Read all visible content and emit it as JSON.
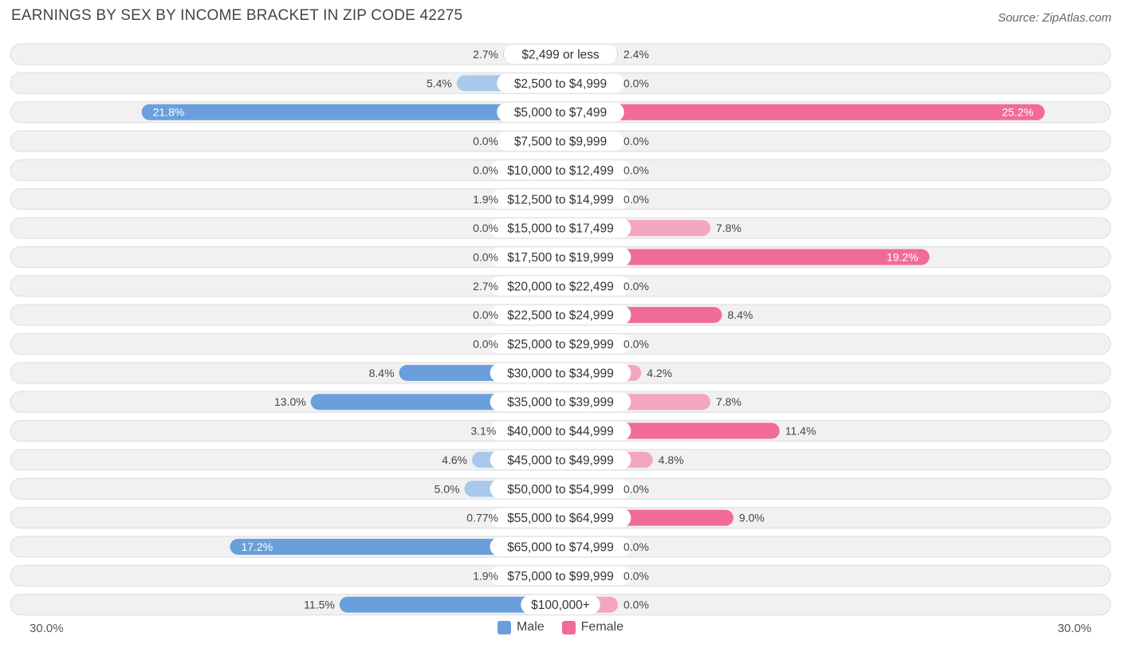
{
  "title": "EARNINGS BY SEX BY INCOME BRACKET IN ZIP CODE 42275",
  "source": "Source: ZipAtlas.com",
  "colors": {
    "male": "#6a9fdc",
    "male_light": "#a8c8ec",
    "female": "#f06b95",
    "female_light": "#f4a6c0",
    "row_bg": "#f1f1f1",
    "row_border": "#dddddd"
  },
  "chart_data": {
    "type": "bar",
    "orientation": "horizontal-diverging",
    "title": "EARNINGS BY SEX BY INCOME BRACKET IN ZIP CODE 42275",
    "categories": [
      "$2,499 or less",
      "$2,500 to $4,999",
      "$5,000 to $7,499",
      "$7,500 to $9,999",
      "$10,000 to $12,499",
      "$12,500 to $14,999",
      "$15,000 to $17,499",
      "$17,500 to $19,999",
      "$20,000 to $22,499",
      "$22,500 to $24,999",
      "$25,000 to $29,999",
      "$30,000 to $34,999",
      "$35,000 to $39,999",
      "$40,000 to $44,999",
      "$45,000 to $49,999",
      "$50,000 to $54,999",
      "$55,000 to $64,999",
      "$65,000 to $74,999",
      "$75,000 to $99,999",
      "$100,000+"
    ],
    "series": [
      {
        "name": "Male",
        "values": [
          2.7,
          5.4,
          21.8,
          0.0,
          0.0,
          1.9,
          0.0,
          0.0,
          2.7,
          0.0,
          0.0,
          8.4,
          13.0,
          3.1,
          4.6,
          5.0,
          0.77,
          17.2,
          1.9,
          11.5
        ],
        "labels": [
          "2.7%",
          "5.4%",
          "21.8%",
          "0.0%",
          "0.0%",
          "1.9%",
          "0.0%",
          "0.0%",
          "2.7%",
          "0.0%",
          "0.0%",
          "8.4%",
          "13.0%",
          "3.1%",
          "4.6%",
          "5.0%",
          "0.77%",
          "17.2%",
          "1.9%",
          "11.5%"
        ]
      },
      {
        "name": "Female",
        "values": [
          2.4,
          0.0,
          25.2,
          0.0,
          0.0,
          0.0,
          7.8,
          19.2,
          0.0,
          8.4,
          0.0,
          4.2,
          7.8,
          11.4,
          4.8,
          0.0,
          9.0,
          0.0,
          0.0,
          0.0
        ],
        "labels": [
          "2.4%",
          "0.0%",
          "25.2%",
          "0.0%",
          "0.0%",
          "0.0%",
          "7.8%",
          "19.2%",
          "0.0%",
          "8.4%",
          "0.0%",
          "4.2%",
          "7.8%",
          "11.4%",
          "4.8%",
          "0.0%",
          "9.0%",
          "0.0%",
          "0.0%",
          "0.0%"
        ]
      }
    ],
    "xlim": [
      -30,
      30
    ],
    "axis_labels": {
      "left": "30.0%",
      "right": "30.0%"
    },
    "legend": [
      "Male",
      "Female"
    ],
    "legend_position": "bottom-center"
  }
}
